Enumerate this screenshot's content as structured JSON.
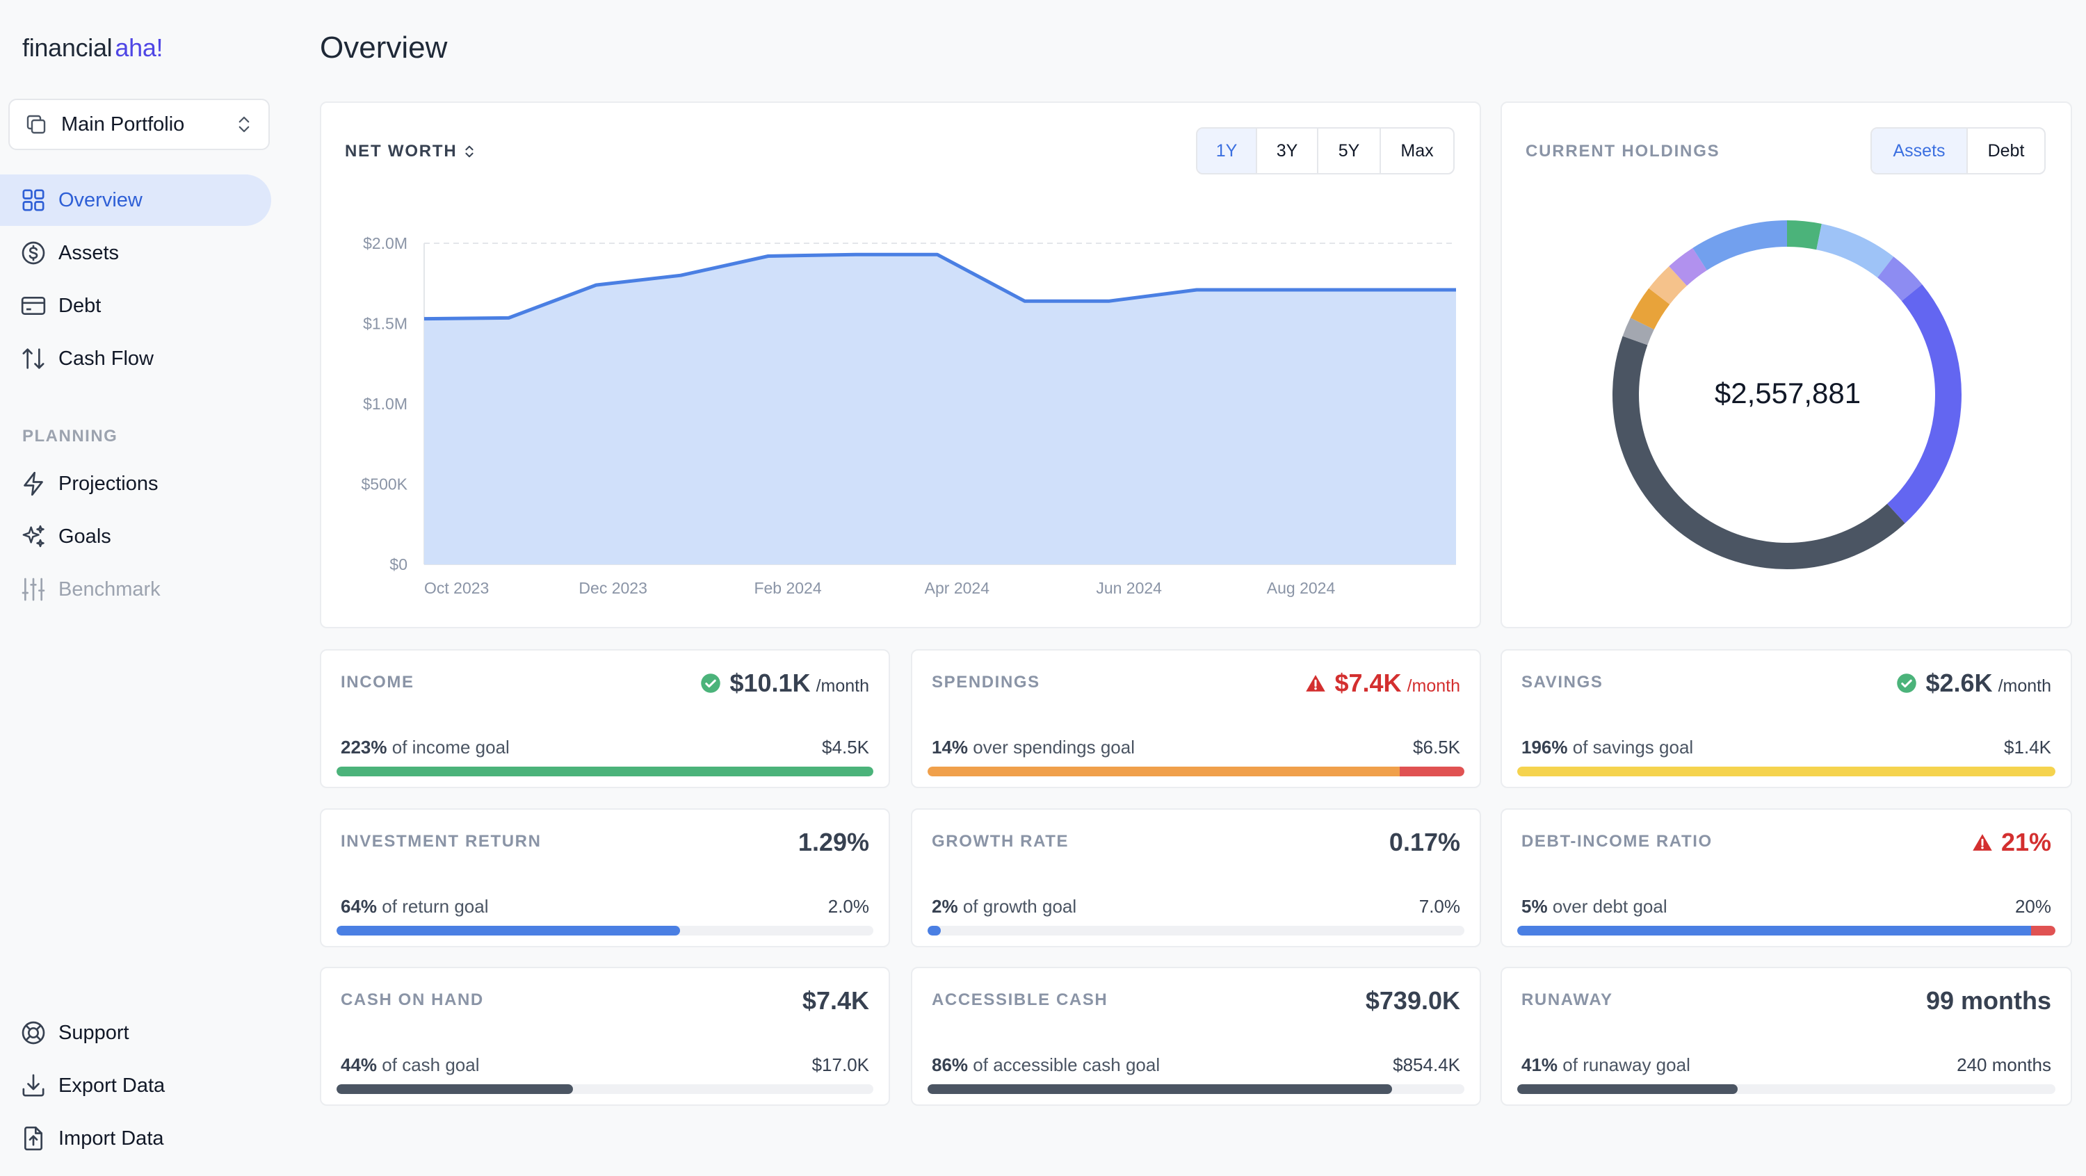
{
  "app": {
    "logo_part1": "financial",
    "logo_part2": "aha!"
  },
  "sidebar": {
    "portfolio": "Main Portfolio",
    "items": [
      {
        "label": "Overview",
        "icon": "grid-icon",
        "active": true
      },
      {
        "label": "Assets",
        "icon": "dollar-circle-icon"
      },
      {
        "label": "Debt",
        "icon": "credit-card-icon"
      },
      {
        "label": "Cash Flow",
        "icon": "arrows-up-down-icon"
      }
    ],
    "section": "PLANNING",
    "planning_items": [
      {
        "label": "Projections",
        "icon": "lightning-icon"
      },
      {
        "label": "Goals",
        "icon": "sparkles-icon"
      },
      {
        "label": "Benchmark",
        "icon": "sliders-icon",
        "disabled": true
      }
    ],
    "bottom_items": [
      {
        "label": "Support",
        "icon": "lifebuoy-icon"
      },
      {
        "label": "Export Data",
        "icon": "download-icon"
      },
      {
        "label": "Import Data",
        "icon": "file-upload-icon"
      }
    ]
  },
  "page": {
    "title": "Overview"
  },
  "net_worth": {
    "title": "NET WORTH",
    "ranges": [
      "1Y",
      "3Y",
      "5Y",
      "Max"
    ],
    "selected_range": "1Y"
  },
  "chart_data": {
    "type": "area",
    "title": "NET WORTH",
    "x": [
      "2023-09-25",
      "2023-10-25",
      "2023-11-25",
      "2023-12-25",
      "2024-01-25",
      "2024-02-25",
      "2024-03-25",
      "2024-04-25",
      "2024-05-25",
      "2024-06-25",
      "2024-07-25",
      "2024-08-25",
      "2024-09-25"
    ],
    "tick_labels": [
      "Oct 2023",
      "Dec 2023",
      "Feb 2024",
      "Apr 2024",
      "Jun 2024",
      "Aug 2024"
    ],
    "y_tick_labels": [
      "$0",
      "$500K",
      "$1.0M",
      "$1.5M",
      "$2.0M"
    ],
    "series": [
      {
        "values": [
          1530000,
          1535000,
          1740000,
          1800000,
          1920000,
          1930000,
          1930000,
          1640000,
          1640000,
          1710000,
          1710000,
          1710000,
          1710000
        ]
      }
    ],
    "ylim": [
      0,
      2000000
    ],
    "grid": true,
    "color": "#4a7fe3"
  },
  "holdings": {
    "title": "CURRENT HOLDINGS",
    "tabs": [
      "Assets",
      "Debt"
    ],
    "selected_tab": "Assets",
    "total": "$2,557,881",
    "chart_data": {
      "type": "pie",
      "segments": [
        {
          "value": 3.5,
          "color": "#4bb37a"
        },
        {
          "value": 8.0,
          "color": "#9ec3f7"
        },
        {
          "value": 4.0,
          "color": "#8d8cf2"
        },
        {
          "value": 26.5,
          "color": "#6366f1"
        },
        {
          "value": 46.5,
          "color": "#4b5563"
        },
        {
          "value": 2.0,
          "color": "#a3a7b0"
        },
        {
          "value": 3.5,
          "color": "#e8a33a"
        },
        {
          "value": 3.0,
          "color": "#f5c28b"
        },
        {
          "value": 3.0,
          "color": "#b191ee"
        },
        {
          "value": 10.0,
          "color": "#72a0ee"
        }
      ]
    }
  },
  "stats": [
    {
      "title": "INCOME",
      "value": "$10.1K",
      "unit": "/month",
      "status": "ok",
      "left_bold": "223%",
      "left_text": "of income goal",
      "right": "$4.5K",
      "fill": 1.0,
      "color": "#4bb37a"
    },
    {
      "title": "SPENDINGS",
      "value": "$7.4K",
      "unit": "/month",
      "status": "warn",
      "left_bold": "14%",
      "left_text": "over spendings goal",
      "right": "$6.5K",
      "fill": 0.88,
      "over": true,
      "color": "#f0a04b"
    },
    {
      "title": "SAVINGS",
      "value": "$2.6K",
      "unit": "/month",
      "status": "ok",
      "left_bold": "196%",
      "left_text": "of savings goal",
      "right": "$1.4K",
      "fill": 1.0,
      "color": "#f5d34e"
    },
    {
      "title": "INVESTMENT RETURN",
      "value": "1.29%",
      "unit": "",
      "left_bold": "64%",
      "left_text": "of return goal",
      "right": "2.0%",
      "fill": 0.64,
      "color": "#4a7fe3"
    },
    {
      "title": "GROWTH RATE",
      "value": "0.17%",
      "unit": "",
      "left_bold": "2%",
      "left_text": "of growth goal",
      "right": "7.0%",
      "fill": 0.025,
      "color": "#4a7fe3"
    },
    {
      "title": "DEBT-INCOME RATIO",
      "value": "21%",
      "unit": "",
      "status": "warn",
      "left_bold": "5%",
      "left_text": "over debt goal",
      "right": "20%",
      "fill": 0.955,
      "over": true,
      "color": "#4a7fe3"
    },
    {
      "title": "CASH ON HAND",
      "value": "$7.4K",
      "unit": "",
      "left_bold": "44%",
      "left_text": "of cash goal",
      "right": "$17.0K",
      "fill": 0.44,
      "color": "#4b5563"
    },
    {
      "title": "ACCESSIBLE CASH",
      "value": "$739.0K",
      "unit": "",
      "left_bold": "86%",
      "left_text": "of accessible cash goal",
      "right": "$854.4K",
      "fill": 0.865,
      "color": "#4b5563"
    },
    {
      "title": "RUNAWAY",
      "value": "99 months",
      "unit": "",
      "left_bold": "41%",
      "left_text": "of runaway goal",
      "right": "240 months",
      "fill": 0.41,
      "color": "#4b5563"
    }
  ]
}
